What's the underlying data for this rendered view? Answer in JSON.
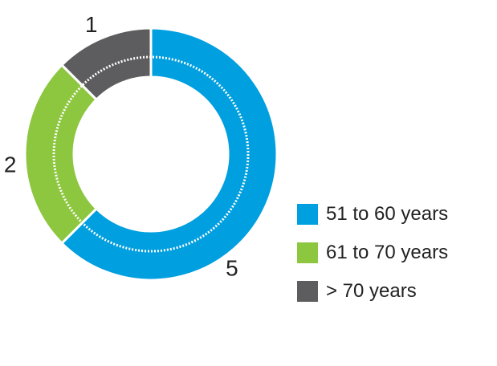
{
  "chart_data": {
    "type": "pie",
    "variant": "donut",
    "title": "",
    "categories": [
      "51 to 60 years",
      "61 to 70 years",
      "> 70 years"
    ],
    "values": [
      5,
      2,
      1
    ],
    "colors": [
      "#009fdf",
      "#8dc63f",
      "#5d5d5f"
    ],
    "data_labels": [
      "5",
      "2",
      "1"
    ],
    "legend": {
      "position": "right",
      "items": [
        {
          "label": "51 to 60 years",
          "color": "#009fdf"
        },
        {
          "label": "61 to 70 years",
          "color": "#8dc63f"
        },
        {
          "label": "> 70 years",
          "color": "#5d5d5f"
        }
      ]
    }
  }
}
